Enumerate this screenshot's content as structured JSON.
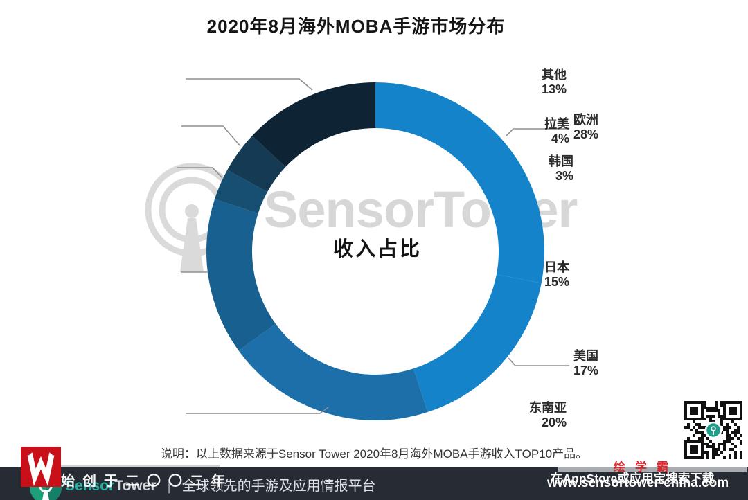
{
  "title": "2020年8月海外MOBA手游市场分布",
  "chart_data": {
    "type": "pie",
    "subtype": "donut",
    "title": "2020年8月海外MOBA手游市场分布",
    "center_label": "收入占比",
    "unit": "%",
    "start_angle_deg": 0,
    "direction": "clockwise",
    "segments": [
      {
        "label": "欧洲",
        "value": 28,
        "display": "28%",
        "color": "#1583c9"
      },
      {
        "label": "美国",
        "value": 17,
        "display": "17%",
        "color": "#1583c9"
      },
      {
        "label": "东南亚",
        "value": 20,
        "display": "20%",
        "color": "#1c6fa8"
      },
      {
        "label": "日本",
        "value": 15,
        "display": "15%",
        "color": "#176090"
      },
      {
        "label": "韩国",
        "value": 3,
        "display": "3%",
        "color": "#174f72"
      },
      {
        "label": "拉美",
        "value": 4,
        "display": "4%",
        "color": "#153a54"
      },
      {
        "label": "其他",
        "value": 13,
        "display": "13%",
        "color": "#0e2434"
      }
    ]
  },
  "watermark": {
    "text": "SensorTower",
    "color": "#d7d7d7"
  },
  "note": "说明：以上数据来源于Sensor Tower 2020年8月海外MOBA手游收入TOP10产品。",
  "footer": {
    "brand_sensor": "Sensor",
    "brand_tower": "Tower",
    "separator": "|",
    "tagline": "全球领先的手游及应用情报平台",
    "url": "www.sensortower-china.com",
    "teal": "#21b3a1",
    "bg": "#272c34"
  },
  "overlay_watermark": {
    "brand": "绘学霸",
    "founded": "始创于二〇〇二年",
    "download_hint": "在AppStore或应用宝搜索下载",
    "red": "#d7262c"
  }
}
